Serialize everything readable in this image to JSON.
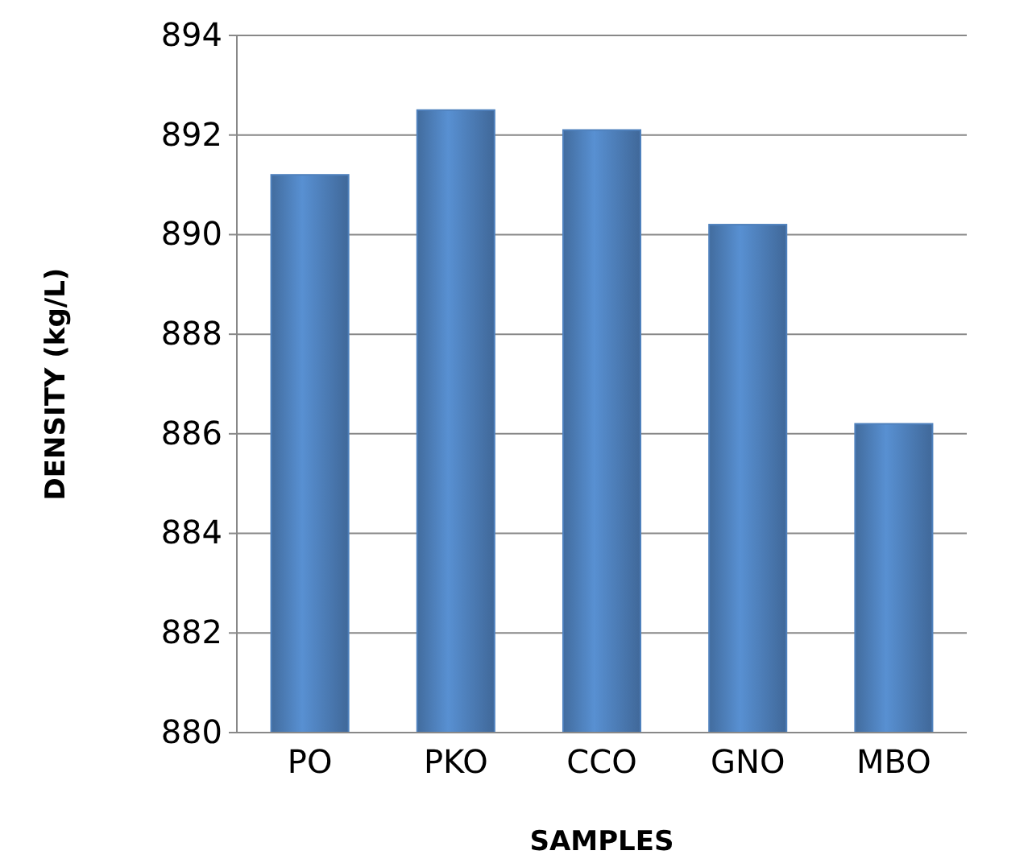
{
  "chart_data": {
    "type": "bar",
    "xlabel": "SAMPLES",
    "ylabel": "DENSITY (kg/L)",
    "categories": [
      "PO",
      "PKO",
      "CCO",
      "GNO",
      "MBO"
    ],
    "values": [
      891.2,
      892.5,
      892.1,
      890.2,
      886.2
    ],
    "color": "#4f81bd",
    "ylim": [
      880,
      894
    ],
    "yticks": [
      880,
      882,
      884,
      886,
      888,
      890,
      892,
      894
    ],
    "grid": "y"
  }
}
